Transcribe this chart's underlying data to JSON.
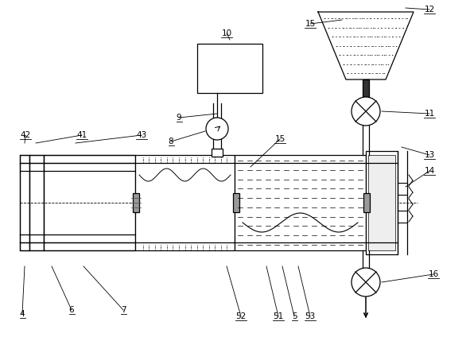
{
  "bg_color": "#ffffff",
  "line_color": "#000000",
  "lw": 0.9
}
